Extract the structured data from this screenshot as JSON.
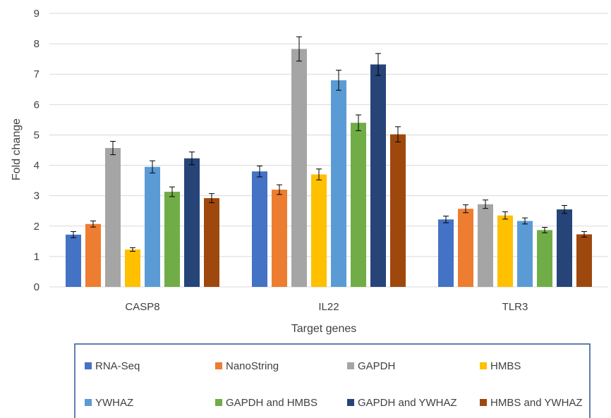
{
  "chart_data": {
    "type": "bar",
    "title": "",
    "xlabel": "Target genes",
    "ylabel": "Fold change",
    "ylim": [
      0,
      9
    ],
    "yticks": [
      0,
      1,
      2,
      3,
      4,
      5,
      6,
      7,
      8,
      9
    ],
    "grid": true,
    "legend_position": "bottom",
    "categories": [
      "CASP8",
      "IL22",
      "TLR3"
    ],
    "series": [
      {
        "name": "RNA-Seq",
        "color": "#4472C4",
        "values": [
          1.72,
          3.8,
          2.22
        ],
        "errors": [
          0.1,
          0.18,
          0.11
        ]
      },
      {
        "name": "NanoString",
        "color": "#ED7D31",
        "values": [
          2.07,
          3.2,
          2.57
        ],
        "errors": [
          0.1,
          0.16,
          0.13
        ]
      },
      {
        "name": "GAPDH",
        "color": "#A5A5A5",
        "values": [
          4.57,
          7.83,
          2.72
        ],
        "errors": [
          0.22,
          0.4,
          0.14
        ]
      },
      {
        "name": "HMBS",
        "color": "#FFC000",
        "values": [
          1.23,
          3.7,
          2.35
        ],
        "errors": [
          0.06,
          0.18,
          0.12
        ]
      },
      {
        "name": "YWHAZ",
        "color": "#5B9BD5",
        "values": [
          3.95,
          6.8,
          2.17
        ],
        "errors": [
          0.2,
          0.33,
          0.1
        ]
      },
      {
        "name": "GAPDH and HMBS",
        "color": "#70AD47",
        "values": [
          3.13,
          5.4,
          1.87
        ],
        "errors": [
          0.16,
          0.26,
          0.09
        ]
      },
      {
        "name": "GAPDH and YWHAZ",
        "color": "#264478",
        "values": [
          4.23,
          7.32,
          2.55
        ],
        "errors": [
          0.21,
          0.36,
          0.13
        ]
      },
      {
        "name": "HMBS and YWHAZ",
        "color": "#9E480E",
        "values": [
          2.92,
          5.02,
          1.73
        ],
        "errors": [
          0.15,
          0.25,
          0.09
        ]
      }
    ]
  }
}
